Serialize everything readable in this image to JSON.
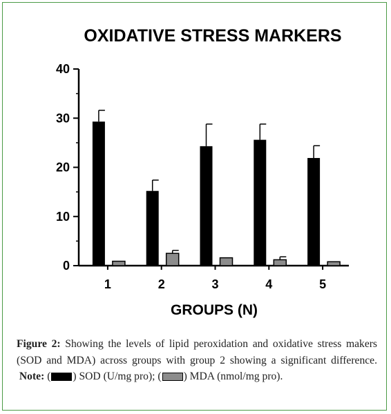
{
  "chart_data": {
    "type": "bar",
    "title": "OXIDATIVE STRESS MARKERS",
    "xlabel": "GROUPS (N)",
    "ylabel": "",
    "categories": [
      "1",
      "2",
      "3",
      "4",
      "5"
    ],
    "ylim": [
      0,
      40
    ],
    "yticks": [
      "0",
      "10",
      "20",
      "30",
      "40"
    ],
    "grid": false,
    "series": [
      {
        "values": [
          29.3,
          15.2,
          24.3,
          25.6,
          21.9
        ],
        "errors": [
          2.3,
          2.2,
          4.5,
          3.2,
          2.5
        ],
        "color": "#000000"
      },
      {
        "values": [
          0.9,
          2.5,
          1.6,
          1.2,
          0.8
        ],
        "errors": [
          0.0,
          0.6,
          0.0,
          0.6,
          0.0
        ],
        "color": "#8c8c8c"
      }
    ]
  },
  "caption": {
    "figure_label": "Figure 2:",
    "text": "Showing the levels of lipid peroxidation and oxidative stress makers (SOD and MDA) across groups with group 2 showing a significant difference.",
    "note_label": "Note:",
    "legend_sod_prefix": "(",
    "legend_sod": ") SOD (U/mg pro); (",
    "legend_mda": ") MDA (nmol/mg pro)."
  }
}
